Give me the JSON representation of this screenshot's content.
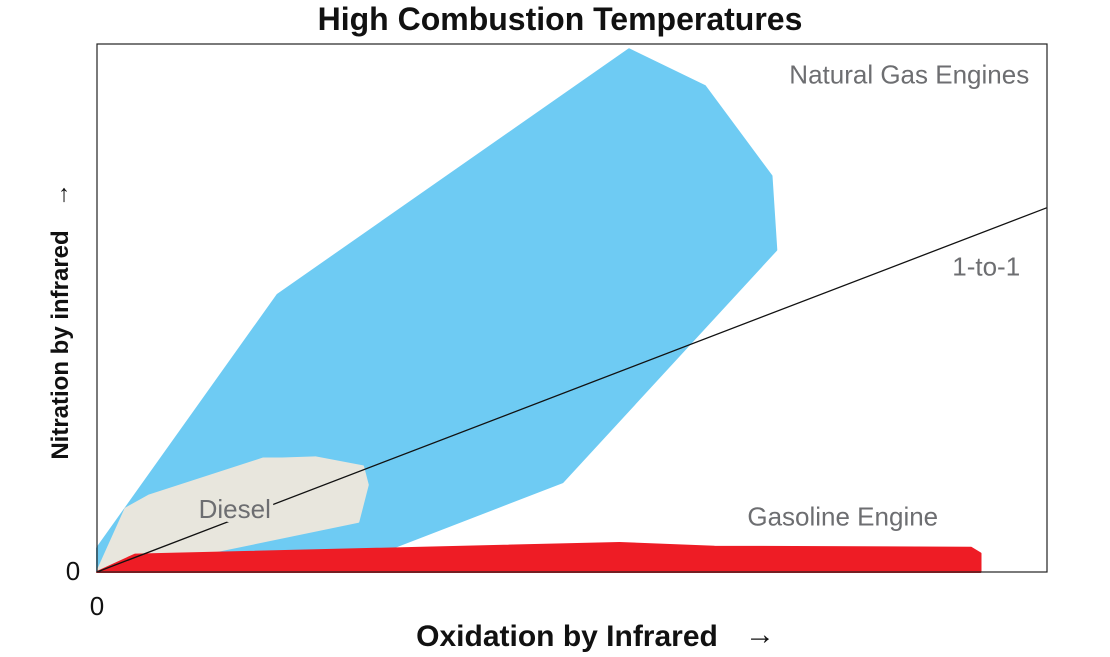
{
  "chart_data": {
    "type": "area",
    "title": "High Combustion Temperatures",
    "xlabel": "Oxidation by Infrared",
    "ylabel": "Nitration by infrared",
    "axis_arrow": "→",
    "x_ticks": [
      "0"
    ],
    "y_ticks": [
      "0"
    ],
    "xlim": [
      0,
      100
    ],
    "ylim": [
      0,
      100
    ],
    "grid": false,
    "legend": "none",
    "regions": [
      {
        "name": "Natural Gas Engines",
        "color": "#6ecbf3",
        "points": [
          [
            0,
            3.5
          ],
          [
            0,
            4.5
          ],
          [
            19,
            52.5
          ],
          [
            56,
            99
          ],
          [
            64,
            92
          ],
          [
            71,
            75
          ],
          [
            71.5,
            61
          ],
          [
            49,
            17
          ],
          [
            31,
            4.5
          ],
          [
            0,
            0
          ]
        ]
      },
      {
        "name": "Diesel",
        "color": "#e8e6dd",
        "points": [
          [
            0,
            0
          ],
          [
            3,
            12
          ],
          [
            5.5,
            14.5
          ],
          [
            17.5,
            21.5
          ],
          [
            19.5,
            21.5
          ],
          [
            23,
            21.7
          ],
          [
            28,
            20
          ],
          [
            28.5,
            16.5
          ],
          [
            27.5,
            9.5
          ],
          [
            10,
            3
          ],
          [
            0,
            0
          ]
        ]
      },
      {
        "name": "Gasoline Engine",
        "color": "#ee1c25",
        "points": [
          [
            0,
            0
          ],
          [
            4,
            3.3
          ],
          [
            55,
            5.5
          ],
          [
            65,
            4.8
          ],
          [
            92,
            4.6
          ],
          [
            93,
            3.5
          ],
          [
            93,
            0
          ],
          [
            0,
            0
          ]
        ]
      }
    ],
    "series": [
      {
        "name": "1-to-1",
        "type": "line",
        "color": "#111111",
        "x": [
          0,
          100
        ],
        "y": [
          0,
          69
        ]
      }
    ]
  }
}
